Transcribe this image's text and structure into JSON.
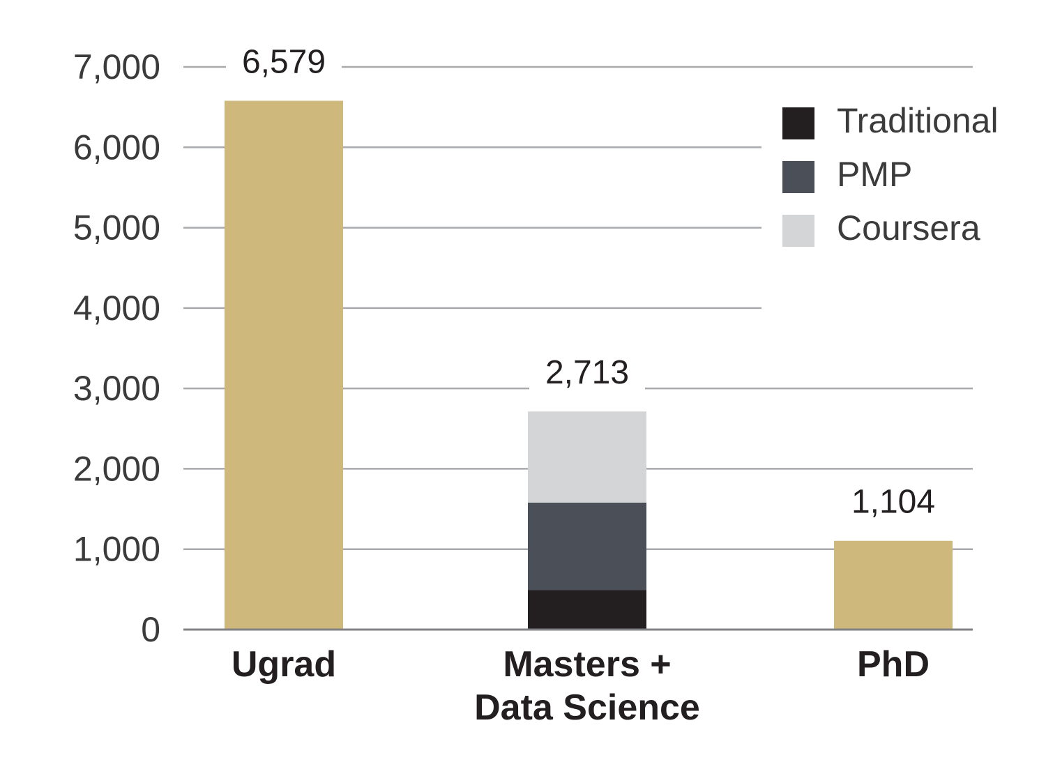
{
  "chart_data": {
    "type": "bar",
    "stacked": true,
    "categories": [
      "Ugrad",
      "Masters +\nData Science",
      "PhD"
    ],
    "ylim": [
      0,
      7000
    ],
    "yticks": [
      0,
      1000,
      2000,
      3000,
      4000,
      5000,
      6000,
      7000
    ],
    "ytick_labels": [
      "0",
      "1,000",
      "2,000",
      "3,000",
      "4,000",
      "5,000",
      "6,000",
      "7,000"
    ],
    "totals": [
      6579,
      2713,
      1104
    ],
    "total_labels": [
      "6,579",
      "2,713",
      "1,104"
    ],
    "grid": true,
    "legend_position": "top-right",
    "series": [
      {
        "name": "Traditional",
        "color": "#231f20",
        "values": [
          0,
          490,
          0
        ]
      },
      {
        "name": "PMP",
        "color": "#4b4f57",
        "values": [
          0,
          1090,
          0
        ]
      },
      {
        "name": "Coursera",
        "color": "#d4d5d7",
        "values": [
          0,
          1133,
          0
        ]
      },
      {
        "color": "#cfb87c",
        "values": [
          6579,
          0,
          1104
        ]
      }
    ],
    "legend_series": [
      0,
      1,
      2
    ]
  }
}
